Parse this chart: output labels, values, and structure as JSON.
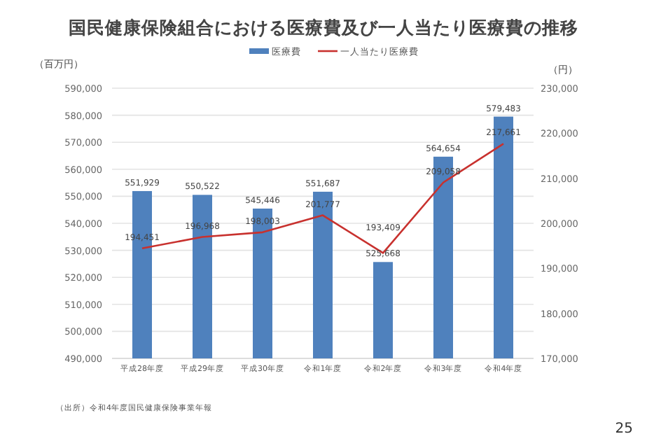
{
  "chart_data": {
    "type": "bar",
    "title": "国民健康保険組合における医療費及び一人当たり医療費の推移",
    "ylabel": "（百万円）",
    "y2label": "（円）",
    "categories": [
      "平成28年度",
      "平成29年度",
      "平成30年度",
      "令和1年度",
      "令和2年度",
      "令和3年度",
      "令和4年度"
    ],
    "series": [
      {
        "name": "医療費",
        "type": "bar",
        "color": "#4f81bd",
        "values": [
          551929,
          550522,
          545446,
          551687,
          525668,
          564654,
          579483
        ],
        "value_labels": [
          "551,929",
          "550,522",
          "545,446",
          "551,687",
          "525,668",
          "564,654",
          "579,483"
        ]
      },
      {
        "name": "一人当たり医療費",
        "type": "line",
        "axis": "y2",
        "color": "#c8312e",
        "values": [
          194451,
          196968,
          198003,
          201777,
          193409,
          209058,
          217661
        ],
        "value_labels": [
          "194,451",
          "196,968",
          "198,003",
          "201,777",
          "193,409",
          "209,058",
          "217,661"
        ]
      }
    ],
    "ylim": [
      490000,
      590000
    ],
    "yticks": [
      {
        "value": 490000,
        "label": "490,000"
      },
      {
        "value": 500000,
        "label": "500,000"
      },
      {
        "value": 510000,
        "label": "510,000"
      },
      {
        "value": 520000,
        "label": "520,000"
      },
      {
        "value": 530000,
        "label": "530,000"
      },
      {
        "value": 540000,
        "label": "540,000"
      },
      {
        "value": 550000,
        "label": "550,000"
      },
      {
        "value": 560000,
        "label": "560,000"
      },
      {
        "value": 570000,
        "label": "570,000"
      },
      {
        "value": 580000,
        "label": "580,000"
      },
      {
        "value": 590000,
        "label": "590,000"
      }
    ],
    "y2lim": [
      170000,
      230000
    ],
    "y2ticks": [
      {
        "value": 170000,
        "label": "170,000"
      },
      {
        "value": 180000,
        "label": "180,000"
      },
      {
        "value": 190000,
        "label": "190,000"
      },
      {
        "value": 200000,
        "label": "200,000"
      },
      {
        "value": 210000,
        "label": "210,000"
      },
      {
        "value": 220000,
        "label": "220,000"
      },
      {
        "value": 230000,
        "label": "230,000"
      }
    ],
    "grid": "y",
    "legend": "top",
    "annotations": [
      "（出所）令和4年度国民健康保険事業年報",
      "25"
    ]
  }
}
